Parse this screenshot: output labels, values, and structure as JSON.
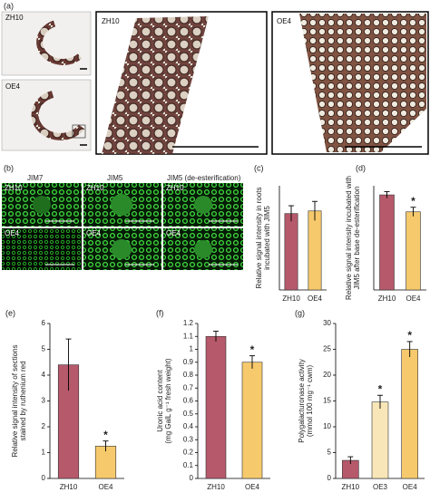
{
  "figure": {
    "a": {
      "label": "(a)",
      "small_top": "ZH10",
      "small_bottom": "OE4",
      "big_left": "ZH10",
      "big_right": "OE4"
    },
    "b": {
      "label": "(b)",
      "columns": [
        "JIM7",
        "JIM5",
        "JIM5 (de-esterification)"
      ],
      "rows": [
        "ZH10",
        "OE4"
      ]
    }
  },
  "chart_data": [
    {
      "type": "bar",
      "title": "(c)",
      "ylabel": [
        "Relative signal intensity in roots",
        "incubated with JIM5"
      ],
      "categories": [
        "ZH10",
        "OE4"
      ],
      "values": [
        4.4,
        4.55
      ],
      "errors": [
        0.45,
        0.55
      ],
      "colors": [
        "#b5596b",
        "#f6c96c"
      ],
      "ylim": [
        0,
        6
      ]
    },
    {
      "type": "bar",
      "title": "(d)",
      "ylabel": [
        "Relative signal intensity incubated with",
        "JIM5 after base de-esterification"
      ],
      "categories": [
        "ZH10",
        "OE4"
      ],
      "values": [
        7.3,
        6.0
      ],
      "errors": [
        0.25,
        0.35
      ],
      "significant": [
        false,
        true
      ],
      "significance_mark": "*",
      "colors": [
        "#b5596b",
        "#f6c96c"
      ],
      "ylim": [
        0,
        8
      ]
    },
    {
      "type": "bar",
      "title": "(e)",
      "ylabel": [
        "Relative signal intensity of sections",
        "stained by ruthenium red"
      ],
      "categories": [
        "ZH10",
        "OE4"
      ],
      "values": [
        4.4,
        1.25
      ],
      "errors": [
        1.0,
        0.2
      ],
      "significant": [
        false,
        true
      ],
      "significance_mark": "*",
      "colors": [
        "#b5596b",
        "#f6c96c"
      ],
      "ylim": [
        0,
        6
      ],
      "yticks": [
        0,
        1,
        2,
        3,
        4,
        5,
        6
      ]
    },
    {
      "type": "bar",
      "title": "(f)",
      "ylabel": [
        "Uronic acid content",
        "(mg GalL g⁻¹ fresh weight)"
      ],
      "categories": [
        "ZH10",
        "OE4"
      ],
      "values": [
        1.1,
        0.9
      ],
      "errors": [
        0.04,
        0.05
      ],
      "significant": [
        false,
        true
      ],
      "significance_mark": "*",
      "colors": [
        "#b5596b",
        "#f6c96c"
      ],
      "ylim": [
        0,
        1.2
      ],
      "yticks": [
        0,
        0.1,
        0.2,
        0.3,
        0.4,
        0.5,
        0.6,
        0.7,
        0.8,
        0.9,
        1,
        1.1,
        1.2
      ]
    },
    {
      "type": "bar",
      "title": "(g)",
      "ylabel": [
        "Polygalacturonase activity",
        "(mmol 100 mg⁻¹ cwm)"
      ],
      "categories": [
        "ZH10",
        "OE3",
        "OE4"
      ],
      "values": [
        3.5,
        14.8,
        25
      ],
      "errors": [
        0.7,
        1.3,
        1.5
      ],
      "significant": [
        false,
        true,
        true
      ],
      "significance_mark": "*",
      "colors": [
        "#b5596b",
        "#f8e6b8",
        "#f6c96c"
      ],
      "ylim": [
        0,
        30
      ],
      "yticks": [
        0,
        5,
        10,
        15,
        20,
        25,
        30
      ]
    }
  ]
}
